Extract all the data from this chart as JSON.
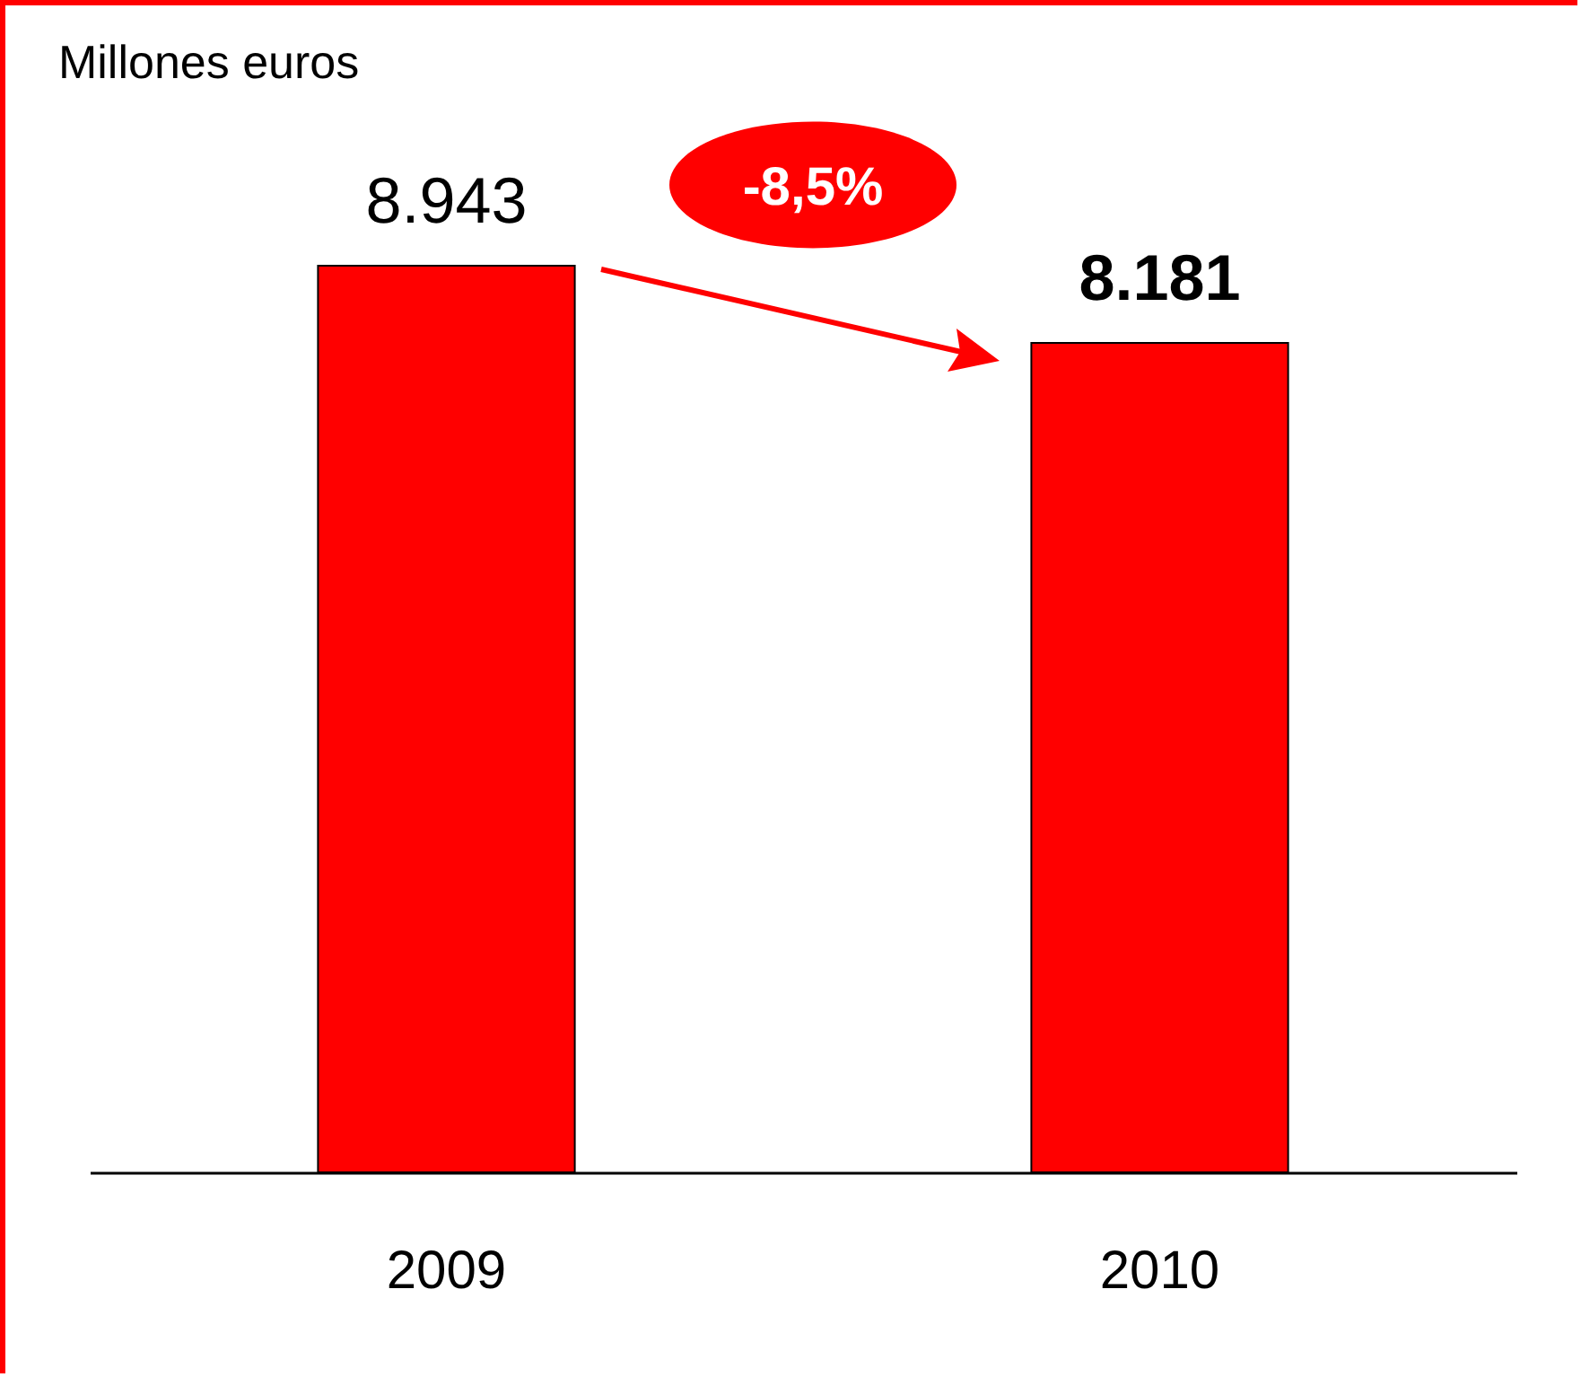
{
  "chart_data": {
    "type": "bar",
    "ylabel": "Millones euros",
    "categories": [
      "2009",
      "2010"
    ],
    "values": [
      8943,
      8181
    ],
    "value_labels": [
      "8.943",
      "8.181"
    ],
    "color": "#ff0000",
    "annotations": [
      "-8,5%"
    ]
  }
}
